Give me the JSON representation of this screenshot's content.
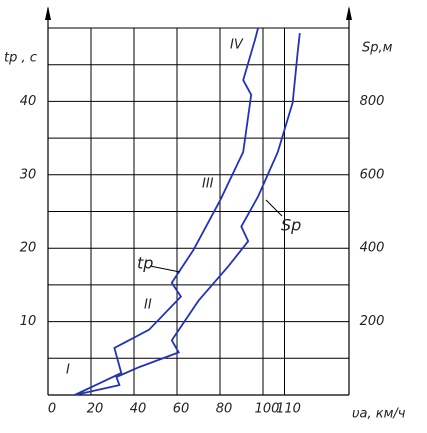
{
  "chart_data": {
    "type": "line",
    "x_label": "υa, км/ч",
    "y_label": "tp , c",
    "y2_label": "Sp,м",
    "xlim": [
      0,
      140
    ],
    "xticks": [
      0,
      20,
      40,
      60,
      80,
      100,
      110
    ],
    "ylim": [
      0,
      50
    ],
    "yticks": [
      0,
      10,
      20,
      30,
      40
    ],
    "minor_yticks": [
      5,
      15,
      25,
      35,
      45
    ],
    "y2lim": [
      0,
      1000
    ],
    "y2ticks": [
      200,
      400,
      600,
      800
    ],
    "grid": true,
    "annotations": [
      "I",
      "II",
      "III",
      "IV"
    ],
    "series": [
      {
        "name": "tp",
        "color": "#2233bb",
        "x": [
          12.4,
          34.1,
          30.9,
          47.0,
          61.8,
          57.6,
          67.7,
          80.2,
          90.8,
          94.5,
          90.8,
          96.3,
          97.7
        ],
        "values": [
          0,
          3.0,
          6.4,
          8.9,
          13.4,
          15.3,
          19.8,
          26.6,
          33.1,
          40.9,
          42.9,
          48.4,
          50.0
        ]
      },
      {
        "name": "Sp",
        "color": "#2233bb",
        "axis": "y2",
        "x": [
          12.4,
          33.2,
          31.8,
          42.4,
          60.8,
          57.6,
          70.0,
          83.9,
          93.1,
          89.9,
          97.7,
          106.9,
          113.8,
          116.1,
          117.1
        ],
        "values": [
          0,
          27,
          49,
          76,
          116,
          149,
          257,
          351,
          419,
          459,
          541,
          662,
          797,
          932,
          986
        ]
      }
    ]
  }
}
